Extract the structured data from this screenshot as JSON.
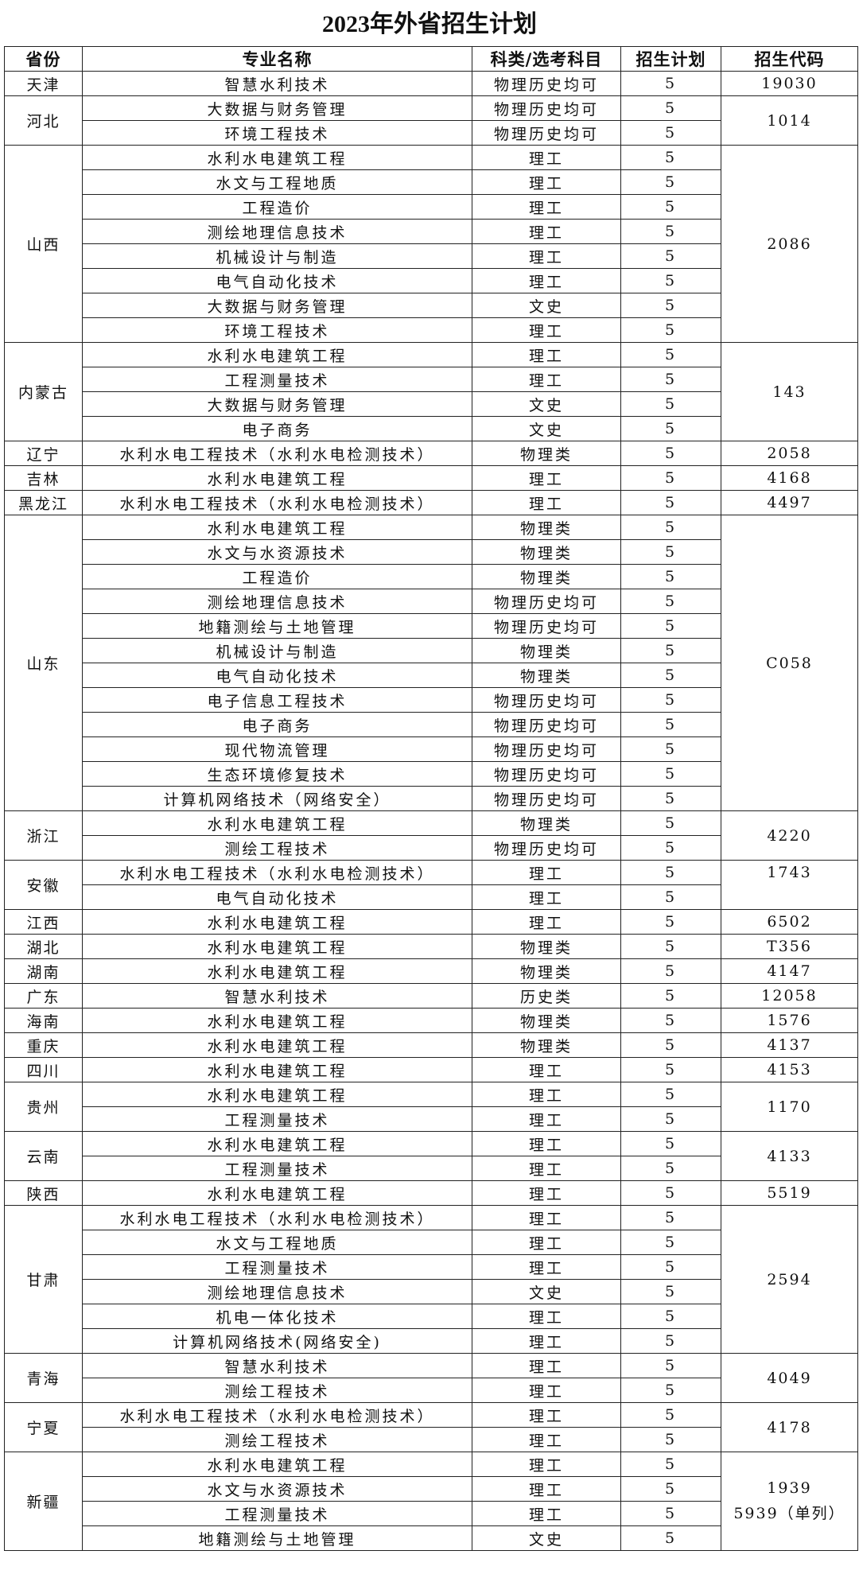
{
  "title": "2023年外省招生计划",
  "headers": [
    "省份",
    "专业名称",
    "科类/选考科目",
    "招生计划",
    "招生代码"
  ],
  "provinces": [
    {
      "name": "天津",
      "code": "19030",
      "rows": [
        [
          "智慧水利技术",
          "物理历史均可",
          "5"
        ]
      ]
    },
    {
      "name": "河北",
      "code": "1014",
      "rows": [
        [
          "大数据与财务管理",
          "物理历史均可",
          "5"
        ],
        [
          "环境工程技术",
          "物理历史均可",
          "5"
        ]
      ]
    },
    {
      "name": "山西",
      "code": "2086",
      "rows": [
        [
          "水利水电建筑工程",
          "理工",
          "5"
        ],
        [
          "水文与工程地质",
          "理工",
          "5"
        ],
        [
          "工程造价",
          "理工",
          "5"
        ],
        [
          "测绘地理信息技术",
          "理工",
          "5"
        ],
        [
          "机械设计与制造",
          "理工",
          "5"
        ],
        [
          "电气自动化技术",
          "理工",
          "5"
        ],
        [
          "大数据与财务管理",
          "文史",
          "5"
        ],
        [
          "环境工程技术",
          "理工",
          "5"
        ]
      ]
    },
    {
      "name": "内蒙古",
      "code": "143",
      "rows": [
        [
          "水利水电建筑工程",
          "理工",
          "5"
        ],
        [
          "工程测量技术",
          "理工",
          "5"
        ],
        [
          "大数据与财务管理",
          "文史",
          "5"
        ],
        [
          "电子商务",
          "文史",
          "5"
        ]
      ]
    },
    {
      "name": "辽宁",
      "code": "2058",
      "rows": [
        [
          "水利水电工程技术（水利水电检测技术）",
          "物理类",
          "5"
        ]
      ]
    },
    {
      "name": "吉林",
      "code": "4168",
      "rows": [
        [
          "水利水电建筑工程",
          "理工",
          "5"
        ]
      ]
    },
    {
      "name": "黑龙江",
      "code": "4497",
      "rows": [
        [
          "水利水电工程技术（水利水电检测技术）",
          "理工",
          "5"
        ]
      ]
    },
    {
      "name": "山东",
      "code": "C058",
      "rows": [
        [
          "水利水电建筑工程",
          "物理类",
          "5"
        ],
        [
          "水文与水资源技术",
          "物理类",
          "5"
        ],
        [
          "工程造价",
          "物理类",
          "5"
        ],
        [
          "测绘地理信息技术",
          "物理历史均可",
          "5"
        ],
        [
          "地籍测绘与土地管理",
          "物理历史均可",
          "5"
        ],
        [
          "机械设计与制造",
          "物理类",
          "5"
        ],
        [
          "电气自动化技术",
          "物理类",
          "5"
        ],
        [
          "电子信息工程技术",
          "物理历史均可",
          "5"
        ],
        [
          "电子商务",
          "物理历史均可",
          "5"
        ],
        [
          "现代物流管理",
          "物理历史均可",
          "5"
        ],
        [
          "生态环境修复技术",
          "物理历史均可",
          "5"
        ],
        [
          "计算机网络技术（网络安全）",
          "物理历史均可",
          "5"
        ]
      ]
    },
    {
      "name": "浙江",
      "code": "4220",
      "rows": [
        [
          "水利水电建筑工程",
          "物理类",
          "5"
        ],
        [
          "测绘工程技术",
          "物理历史均可",
          "5"
        ]
      ]
    },
    {
      "name": "安徽",
      "code": "1743",
      "code_top": true,
      "rows": [
        [
          "水利水电工程技术（水利水电检测技术）",
          "理工",
          "5"
        ],
        [
          "电气自动化技术",
          "理工",
          "5"
        ]
      ]
    },
    {
      "name": "江西",
      "code": "6502",
      "rows": [
        [
          "水利水电建筑工程",
          "理工",
          "5"
        ]
      ]
    },
    {
      "name": "湖北",
      "code": "T356",
      "rows": [
        [
          "水利水电建筑工程",
          "物理类",
          "5"
        ]
      ]
    },
    {
      "name": "湖南",
      "code": "4147",
      "rows": [
        [
          "水利水电建筑工程",
          "物理类",
          "5"
        ]
      ]
    },
    {
      "name": "广东",
      "code": "12058",
      "rows": [
        [
          "智慧水利技术",
          "历史类",
          "5"
        ]
      ]
    },
    {
      "name": "海南",
      "code": "1576",
      "rows": [
        [
          "水利水电建筑工程",
          "物理类",
          "5"
        ]
      ]
    },
    {
      "name": "重庆",
      "code": "4137",
      "rows": [
        [
          "水利水电建筑工程",
          "物理类",
          "5"
        ]
      ]
    },
    {
      "name": "四川",
      "code": "4153",
      "rows": [
        [
          "水利水电建筑工程",
          "理工",
          "5"
        ]
      ]
    },
    {
      "name": "贵州",
      "code": "1170",
      "rows": [
        [
          "水利水电建筑工程",
          "理工",
          "5"
        ],
        [
          "工程测量技术",
          "理工",
          "5"
        ]
      ]
    },
    {
      "name": "云南",
      "code": "4133",
      "rows": [
        [
          "水利水电建筑工程",
          "理工",
          "5"
        ],
        [
          "工程测量技术",
          "理工",
          "5"
        ]
      ]
    },
    {
      "name": "陕西",
      "code": "5519",
      "rows": [
        [
          "水利水电建筑工程",
          "理工",
          "5"
        ]
      ]
    },
    {
      "name": "甘肃",
      "code": "2594",
      "rows": [
        [
          "水利水电工程技术（水利水电检测技术）",
          "理工",
          "5"
        ],
        [
          "水文与工程地质",
          "理工",
          "5"
        ],
        [
          "工程测量技术",
          "理工",
          "5"
        ],
        [
          "测绘地理信息技术",
          "文史",
          "5"
        ],
        [
          "机电一体化技术",
          "理工",
          "5"
        ],
        [
          "计算机网络技术(网络安全)",
          "理工",
          "5"
        ]
      ]
    },
    {
      "name": "青海",
      "code": "4049",
      "rows": [
        [
          "智慧水利技术",
          "理工",
          "5"
        ],
        [
          "测绘工程技术",
          "理工",
          "5"
        ]
      ]
    },
    {
      "name": "宁夏",
      "code": "4178",
      "rows": [
        [
          "水利水电工程技术（水利水电检测技术）",
          "理工",
          "5"
        ],
        [
          "测绘工程技术",
          "理工",
          "5"
        ]
      ]
    },
    {
      "name": "新疆",
      "code": "1939",
      "code_extra": "5939（单列）",
      "rows": [
        [
          "水利水电建筑工程",
          "理工",
          "5"
        ],
        [
          "水文与水资源技术",
          "理工",
          "5"
        ],
        [
          "工程测量技术",
          "理工",
          "5"
        ],
        [
          "地籍测绘与土地管理",
          "文史",
          "5"
        ]
      ]
    }
  ]
}
